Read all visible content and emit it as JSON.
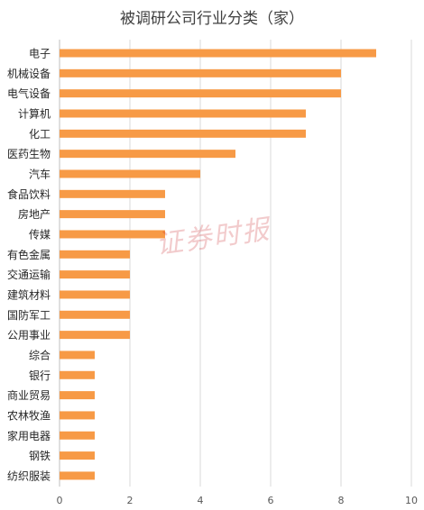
{
  "chart_data": {
    "type": "bar",
    "orientation": "horizontal",
    "title": "被调研公司行业分类（家）",
    "categories": [
      "电子",
      "机械设备",
      "电气设备",
      "计算机",
      "化工",
      "医药生物",
      "汽车",
      "食品饮料",
      "房地产",
      "传媒",
      "有色金属",
      "交通运输",
      "建筑材料",
      "国防军工",
      "公用事业",
      "综合",
      "银行",
      "商业贸易",
      "农林牧渔",
      "家用电器",
      "钢铁",
      "纺织服装"
    ],
    "values": [
      9,
      8,
      8,
      7,
      7,
      5,
      4,
      3,
      3,
      3,
      2,
      2,
      2,
      2,
      2,
      1,
      1,
      1,
      1,
      1,
      1,
      1
    ],
    "xlim": [
      0,
      10
    ],
    "xticks": [
      0,
      2,
      4,
      6,
      8,
      10
    ],
    "grid": true,
    "bar_color": "#F79A46",
    "grid_color": "#D9D9D9"
  },
  "watermark": "证券时报"
}
